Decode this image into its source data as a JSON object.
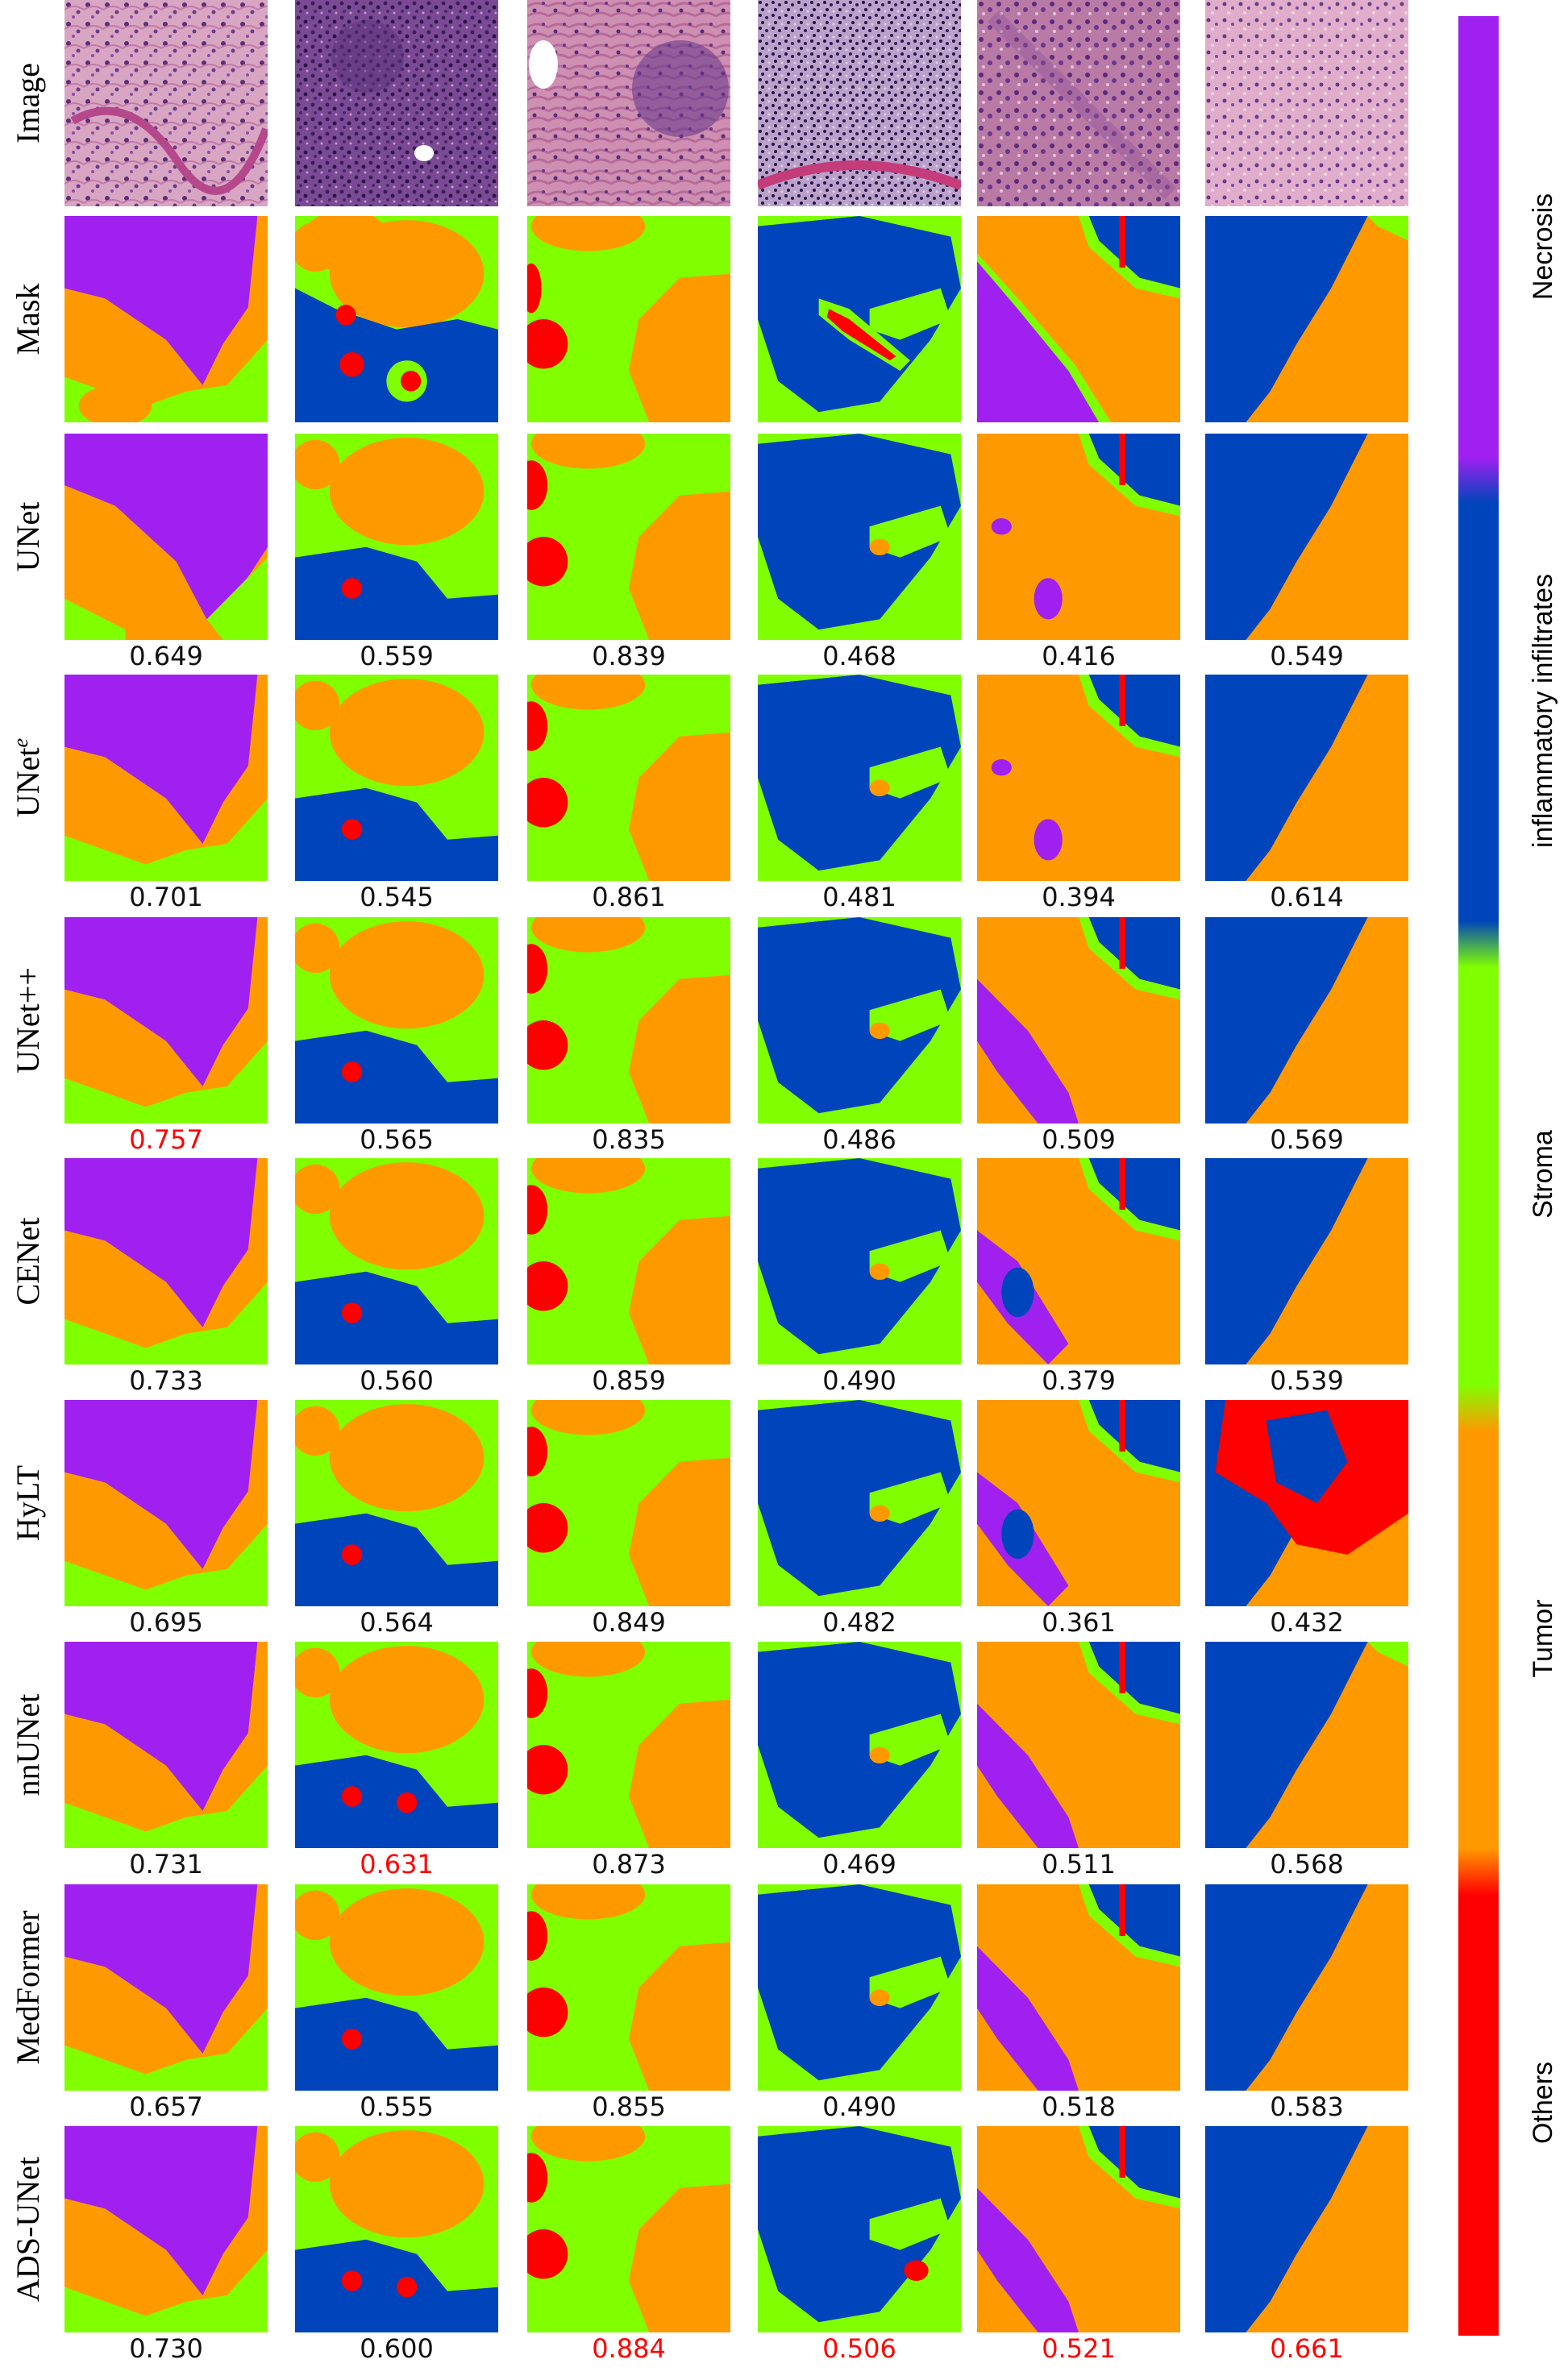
{
  "figure": {
    "rows": [
      {
        "label": "Image",
        "type": "image"
      },
      {
        "label": "Mask",
        "type": "mask"
      },
      {
        "label": "UNet",
        "type": "pred",
        "scores": [
          "0.649",
          "0.559",
          "0.839",
          "0.468",
          "0.416",
          "0.549"
        ]
      },
      {
        "label": "UNet",
        "label_sup": "e",
        "type": "pred",
        "scores": [
          "0.701",
          "0.545",
          "0.861",
          "0.481",
          "0.394",
          "0.614"
        ]
      },
      {
        "label": "UNet++",
        "type": "pred",
        "scores": [
          "0.757",
          "0.565",
          "0.835",
          "0.486",
          "0.509",
          "0.569"
        ],
        "best": [
          0
        ]
      },
      {
        "label": "CENet",
        "type": "pred",
        "scores": [
          "0.733",
          "0.560",
          "0.859",
          "0.490",
          "0.379",
          "0.539"
        ]
      },
      {
        "label": "HyLT",
        "type": "pred",
        "scores": [
          "0.695",
          "0.564",
          "0.849",
          "0.482",
          "0.361",
          "0.432"
        ]
      },
      {
        "label": "nnUNet",
        "type": "pred",
        "scores": [
          "0.731",
          "0.631",
          "0.873",
          "0.469",
          "0.511",
          "0.568"
        ],
        "best": [
          1
        ]
      },
      {
        "label": "MedFormer",
        "type": "pred",
        "scores": [
          "0.657",
          "0.555",
          "0.855",
          "0.490",
          "0.518",
          "0.583"
        ]
      },
      {
        "label": "ADS-UNet",
        "type": "pred",
        "scores": [
          "0.730",
          "0.600",
          "0.884",
          "0.506",
          "0.521",
          "0.661"
        ],
        "best": [
          2,
          3,
          4,
          5
        ]
      }
    ],
    "best_color": "#ff0000"
  },
  "legend": {
    "items": [
      {
        "label": "Necrosis",
        "color": "#a020f0"
      },
      {
        "label": "inflammatory infiltrates",
        "color": "#0044bb"
      },
      {
        "label": "Stroma",
        "color": "#80ff00"
      },
      {
        "label": "Tumor",
        "color": "#ff9900"
      },
      {
        "label": "Others",
        "color": "#ff0000"
      }
    ]
  },
  "colors": {
    "necrosis": "#a020f0",
    "inflammatory": "#0044bb",
    "stroma": "#80ff00",
    "tumor": "#ff9900",
    "others": "#ff0000",
    "tissue_pink": "#d9a2c0",
    "tissue_purple": "#6f3f86"
  }
}
